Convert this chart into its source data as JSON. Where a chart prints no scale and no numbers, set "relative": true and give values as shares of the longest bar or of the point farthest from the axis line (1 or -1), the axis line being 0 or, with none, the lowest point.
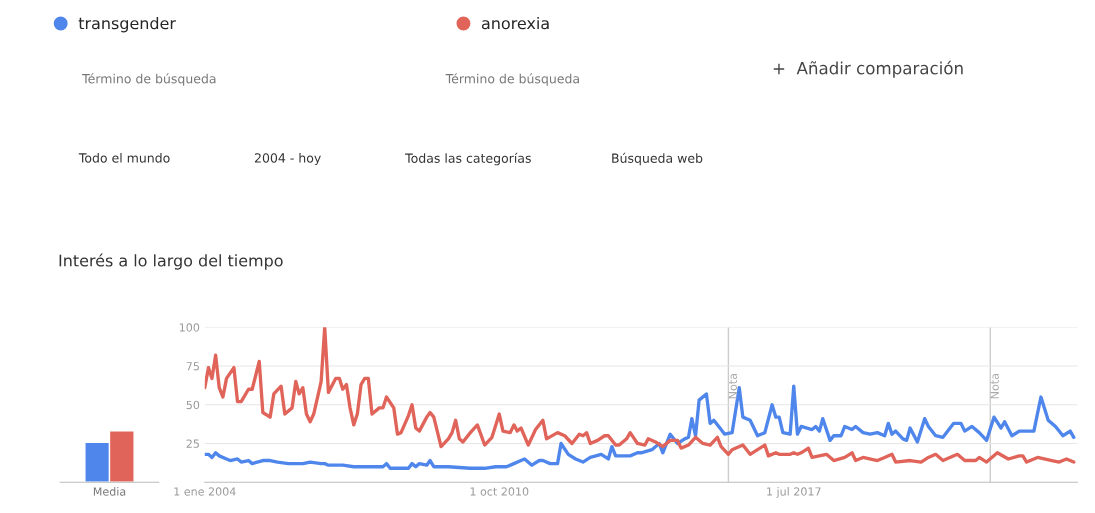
{
  "chart_data": [
    {
      "type": "other",
      "annotations": [
        "Término de búsqueda",
        "Término de búsqueda",
        "+  Añadir comparación",
        "Todo el mundo",
        "2004 - hoy",
        "Todas las categorías",
        "Búsqueda web"
      ]
    },
    {
      "type": "bar",
      "categories": [
        "Media"
      ],
      "relative": true,
      "series": [
        {
          "color": "#4f86ec",
          "values": [
            0.78
          ]
        },
        {
          "color": "#e06459",
          "values": [
            1
          ]
        }
      ]
    },
    {
      "type": "line",
      "title": "Interés a lo largo del tiempo",
      "legend": "top left",
      "grid": "y",
      "xlim": [
        "2004-01-01",
        "2024-01-01"
      ],
      "ylim": [
        0,
        100
      ],
      "yticks": [
        25,
        50,
        75,
        100
      ],
      "xticks": [
        {
          "value": "2004-01-01",
          "label": "1 ene 2004"
        },
        {
          "value": "2010-10-01",
          "label": "1 oct 2010"
        },
        {
          "value": "2017-07-01",
          "label": "1 jul 2017"
        }
      ],
      "ref_lines": [
        {
          "axis": "x",
          "value": "2016-01-01",
          "label": "Nota",
          "color": "#cccccc"
        },
        {
          "axis": "x",
          "value": "2022-01-01",
          "label": "Nota",
          "color": "#cccccc"
        }
      ],
      "series": [
        {
          "name": "transgender",
          "color": "#4f86ec",
          "x": [
            "2004-01",
            "2004-02",
            "2004-03",
            "2004-04",
            "2004-05",
            "2004-07",
            "2004-08",
            "2004-10",
            "2004-11",
            "2005-01",
            "2005-02",
            "2005-05",
            "2005-07",
            "2005-09",
            "2005-12",
            "2006-04",
            "2006-06",
            "2006-09",
            "2006-10",
            "2006-11",
            "2007-03",
            "2007-06",
            "2007-10",
            "2008-02",
            "2008-03",
            "2008-04",
            "2008-09",
            "2008-10",
            "2008-11",
            "2008-12",
            "2009-02",
            "2009-03",
            "2009-04",
            "2009-08",
            "2010-02",
            "2010-06",
            "2010-09",
            "2010-12",
            "2011-02",
            "2011-04",
            "2011-05",
            "2011-07",
            "2011-09",
            "2011-10",
            "2011-12",
            "2012-02",
            "2012-03",
            "2012-05",
            "2012-07",
            "2012-09",
            "2012-11",
            "2013-02",
            "2013-04",
            "2013-05",
            "2013-06",
            "2013-08",
            "2013-10",
            "2013-12",
            "2014-01",
            "2014-04",
            "2014-06",
            "2014-07",
            "2014-09",
            "2014-11",
            "2015-01",
            "2015-02",
            "2015-03",
            "2015-04",
            "2015-05",
            "2015-07",
            "2015-08",
            "2015-09",
            "2015-11",
            "2015-12",
            "2016-02",
            "2016-04",
            "2016-05",
            "2016-07",
            "2016-09",
            "2016-11",
            "2017-01",
            "2017-02",
            "2017-03",
            "2017-04",
            "2017-06",
            "2017-07",
            "2017-08",
            "2017-09",
            "2017-12",
            "2018-01",
            "2018-02",
            "2018-03",
            "2018-05",
            "2018-06",
            "2018-08",
            "2018-09",
            "2018-11",
            "2018-12",
            "2019-02",
            "2019-04",
            "2019-06",
            "2019-08",
            "2019-09",
            "2019-10",
            "2019-11",
            "2020-01",
            "2020-02",
            "2020-03",
            "2020-05",
            "2020-07",
            "2020-08",
            "2020-10",
            "2020-12",
            "2021-03",
            "2021-05",
            "2021-06",
            "2021-08",
            "2021-10",
            "2021-12",
            "2022-02",
            "2022-04",
            "2022-05",
            "2022-07",
            "2022-09",
            "2023-01",
            "2023-03",
            "2023-05",
            "2023-07",
            "2023-09",
            "2023-11",
            "2023-12"
          ],
          "values": [
            18,
            18,
            16,
            19,
            17,
            15,
            14,
            15,
            13,
            14,
            12,
            14,
            14,
            13,
            12,
            12,
            13,
            12,
            12,
            11,
            11,
            10,
            10,
            10,
            12,
            9,
            9,
            12,
            10,
            12,
            11,
            14,
            10,
            10,
            9,
            9,
            10,
            10,
            12,
            14,
            15,
            11,
            14,
            14,
            12,
            12,
            25,
            18,
            15,
            13,
            16,
            18,
            15,
            23,
            17,
            17,
            17,
            19,
            19,
            21,
            25,
            19,
            31,
            25,
            28,
            29,
            41,
            30,
            53,
            57,
            38,
            40,
            34,
            31,
            32,
            61,
            42,
            40,
            30,
            32,
            50,
            42,
            42,
            32,
            31,
            62,
            31,
            36,
            34,
            36,
            33,
            41,
            27,
            30,
            30,
            36,
            34,
            36,
            32,
            31,
            32,
            30,
            38,
            31,
            33,
            28,
            27,
            35,
            26,
            41,
            36,
            30,
            29,
            38,
            38,
            33,
            36,
            32,
            27,
            42,
            35,
            39,
            30,
            33,
            33,
            55,
            40,
            36,
            30,
            33,
            29
          ]
        },
        {
          "name": "anorexia",
          "color": "#e06459",
          "x": [
            "2004-01",
            "2004-02",
            "2004-03",
            "2004-04",
            "2004-05",
            "2004-06",
            "2004-07",
            "2004-09",
            "2004-10",
            "2004-11",
            "2005-01",
            "2005-02",
            "2005-04",
            "2005-05",
            "2005-07",
            "2005-08",
            "2005-10",
            "2005-11",
            "2006-01",
            "2006-02",
            "2006-03",
            "2006-04",
            "2006-05",
            "2006-06",
            "2006-07",
            "2006-09",
            "2006-10",
            "2006-11",
            "2007-01",
            "2007-02",
            "2007-03",
            "2007-04",
            "2007-05",
            "2007-06",
            "2007-07",
            "2007-08",
            "2007-09",
            "2007-10",
            "2007-11",
            "2008-01",
            "2008-02",
            "2008-03",
            "2008-05",
            "2008-06",
            "2008-07",
            "2008-09",
            "2008-10",
            "2008-11",
            "2008-12",
            "2009-02",
            "2009-03",
            "2009-04",
            "2009-06",
            "2009-08",
            "2009-09",
            "2009-10",
            "2009-11",
            "2009-12",
            "2010-02",
            "2010-04",
            "2010-06",
            "2010-08",
            "2010-10",
            "2010-11",
            "2011-01",
            "2011-02",
            "2011-03",
            "2011-04",
            "2011-06",
            "2011-08",
            "2011-10",
            "2011-11",
            "2012-02",
            "2012-04",
            "2012-06",
            "2012-08",
            "2012-09",
            "2012-10",
            "2012-11",
            "2013-01",
            "2013-03",
            "2013-04",
            "2013-06",
            "2013-07",
            "2013-09",
            "2013-10",
            "2013-12",
            "2014-02",
            "2014-03",
            "2014-05",
            "2014-07",
            "2014-09",
            "2014-11",
            "2014-12",
            "2015-02",
            "2015-04",
            "2015-06",
            "2015-08",
            "2015-10",
            "2015-11",
            "2016-01",
            "2016-02",
            "2016-05",
            "2016-07",
            "2016-09",
            "2016-11",
            "2016-12",
            "2017-02",
            "2017-03",
            "2017-06",
            "2017-07",
            "2017-08",
            "2017-09",
            "2017-11",
            "2017-12",
            "2018-04",
            "2018-06",
            "2018-09",
            "2018-11",
            "2018-12",
            "2019-02",
            "2019-06",
            "2019-08",
            "2019-10",
            "2019-11",
            "2020-03",
            "2020-06",
            "2020-08",
            "2020-10",
            "2020-12",
            "2021-04",
            "2021-06",
            "2021-09",
            "2021-10",
            "2021-12",
            "2022-03",
            "2022-06",
            "2022-09",
            "2022-10",
            "2022-11",
            "2023-02",
            "2023-06",
            "2023-08",
            "2023-10",
            "2023-12"
          ],
          "values": [
            61,
            74,
            67,
            82,
            61,
            55,
            67,
            74,
            52,
            52,
            60,
            60,
            78,
            45,
            42,
            57,
            62,
            44,
            48,
            65,
            57,
            61,
            44,
            39,
            44,
            65,
            100,
            58,
            67,
            67,
            60,
            63,
            48,
            37,
            44,
            63,
            67,
            67,
            44,
            48,
            48,
            55,
            48,
            31,
            32,
            43,
            50,
            35,
            33,
            42,
            45,
            42,
            23,
            28,
            32,
            40,
            28,
            26,
            32,
            37,
            24,
            29,
            44,
            33,
            32,
            37,
            33,
            35,
            24,
            34,
            40,
            28,
            32,
            30,
            25,
            31,
            30,
            32,
            25,
            27,
            30,
            30,
            24,
            24,
            28,
            32,
            25,
            24,
            28,
            26,
            23,
            27,
            27,
            22,
            24,
            29,
            25,
            24,
            29,
            23,
            18,
            21,
            24,
            18,
            21,
            24,
            17,
            19,
            18,
            18,
            19,
            18,
            19,
            22,
            16,
            18,
            14,
            16,
            19,
            14,
            16,
            14,
            16,
            18,
            13,
            14,
            13,
            16,
            18,
            14,
            18,
            14,
            14,
            16,
            13,
            19,
            15,
            17,
            17,
            13,
            16,
            14,
            13,
            15,
            13
          ]
        }
      ]
    }
  ]
}
